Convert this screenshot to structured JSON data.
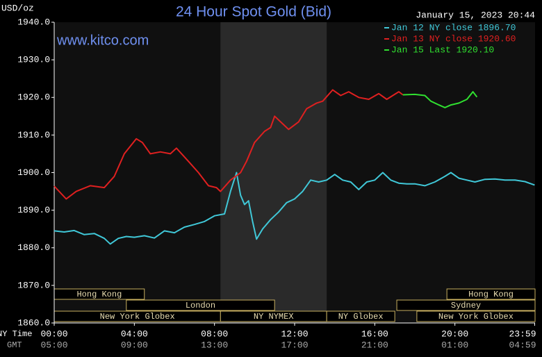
{
  "chart_data": {
    "type": "line",
    "title": "24 Hour Spot Gold (Bid)",
    "website": "www.kitco.com",
    "unit_label": "USD/oz",
    "timestamp": "January 15, 2023 20:44",
    "x_row_labels": [
      "NY Time",
      "GMT"
    ],
    "xlim": [
      0,
      24
    ],
    "xticks": [
      {
        "value": 0,
        "label": "00:00"
      },
      {
        "value": 4,
        "label": "04:00"
      },
      {
        "value": 8,
        "label": "08:00"
      },
      {
        "value": 12,
        "label": "12:00"
      },
      {
        "value": 16,
        "label": "16:00"
      },
      {
        "value": 20,
        "label": "20:00"
      },
      {
        "value": 23.983,
        "label": "23:59"
      }
    ],
    "gmt_labels": [
      "05:00",
      "09:00",
      "13:00",
      "17:00",
      "21:00",
      "01:00",
      "04:59"
    ],
    "ylim": [
      1860,
      1940
    ],
    "yticks": [
      {
        "value": 1860,
        "label": "1860.0"
      },
      {
        "value": 1870,
        "label": "1870.0"
      },
      {
        "value": 1880,
        "label": "1880.0"
      },
      {
        "value": 1890,
        "label": "1890.0"
      },
      {
        "value": 1900,
        "label": "1900.0"
      },
      {
        "value": 1910,
        "label": "1910.0"
      },
      {
        "value": 1920,
        "label": "1920.0"
      },
      {
        "value": 1930,
        "label": "1930.0"
      },
      {
        "value": 1940,
        "label": "1940.0"
      }
    ],
    "highlight_range": [
      8.3,
      13.6
    ],
    "sessions": [
      [
        {
          "label": "Hong Kong",
          "start": 0,
          "end": 4.5
        },
        {
          "label": "Hong Kong",
          "start": 19.6,
          "end": 24
        }
      ],
      [
        {
          "label": "London",
          "start": 3.6,
          "end": 11
        },
        {
          "label": "Sydney",
          "start": 17.1,
          "end": 24
        }
      ],
      [
        {
          "label": "New York Globex",
          "start": 0,
          "end": 8.3
        },
        {
          "label": "NY NYMEX",
          "start": 8.3,
          "end": 13.6
        },
        {
          "label": "NY Globex",
          "start": 13.6,
          "end": 17
        },
        {
          "label": "New York Globex",
          "start": 18.1,
          "end": 24
        }
      ]
    ],
    "series": [
      {
        "name": "Jan 12 NY close 1896.70",
        "color": "#40c8d8",
        "x": [
          0,
          0.5,
          1,
          1.5,
          2,
          2.5,
          2.8,
          3.2,
          3.6,
          4,
          4.5,
          5,
          5.5,
          6,
          6.5,
          7,
          7.5,
          8,
          8.5,
          8.8,
          9.1,
          9.3,
          9.5,
          9.7,
          9.9,
          10.1,
          10.4,
          10.8,
          11.2,
          11.6,
          12,
          12.4,
          12.8,
          13.2,
          13.6,
          14,
          14.4,
          14.8,
          15.2,
          15.6,
          16,
          16.4,
          16.8,
          17.2,
          17.6,
          18,
          18.5,
          19,
          19.5,
          19.8,
          20.2,
          20.6,
          21,
          21.5,
          22,
          22.5,
          23,
          23.5,
          23.98
        ],
        "values": [
          1884.5,
          1884.2,
          1884.6,
          1883.5,
          1883.8,
          1882.5,
          1881,
          1882.5,
          1883,
          1882.8,
          1883.2,
          1882.6,
          1884.5,
          1884,
          1885.5,
          1886.2,
          1887,
          1888.5,
          1889,
          1895,
          1900,
          1894,
          1891.5,
          1892.5,
          1887,
          1882.3,
          1885,
          1887.5,
          1889.5,
          1892,
          1893,
          1895,
          1898,
          1897.5,
          1898,
          1899.5,
          1898,
          1897.5,
          1895.5,
          1897.5,
          1898,
          1900,
          1898,
          1897.2,
          1897,
          1897,
          1896.5,
          1897.5,
          1899,
          1900,
          1898.5,
          1898,
          1897.5,
          1898.2,
          1898.3,
          1898,
          1898,
          1897.6,
          1896.7
        ]
      },
      {
        "name": "Jan 13 NY close 1920.60",
        "color": "#e02020",
        "x": [
          0,
          0.6,
          1.1,
          1.8,
          2.5,
          3,
          3.5,
          4.1,
          4.4,
          4.8,
          5.3,
          5.8,
          6.1,
          6.7,
          7.2,
          7.7,
          8.1,
          8.3,
          8.8,
          9.3,
          9.6,
          10,
          10.5,
          10.8,
          11,
          11.4,
          11.7,
          12.2,
          12.6,
          13.1,
          13.4,
          13.9,
          14.3,
          14.7,
          15.2,
          15.7,
          16.2,
          16.6,
          16.9,
          17.2,
          17.4
        ],
        "values": [
          1896.4,
          1893,
          1895,
          1896.5,
          1896,
          1899,
          1905,
          1909,
          1908,
          1905,
          1905.5,
          1905,
          1906.5,
          1903,
          1900,
          1896.5,
          1896,
          1895,
          1898,
          1900,
          1903,
          1908,
          1911,
          1912,
          1915,
          1913,
          1911.5,
          1913.5,
          1917,
          1918.5,
          1919,
          1922,
          1920.5,
          1921.5,
          1920,
          1919.5,
          1921,
          1919.5,
          1920.5,
          1921.5,
          1920.7
        ]
      },
      {
        "name": "Jan 15 Last 1920.10",
        "color": "#30e030",
        "x": [
          17.4,
          18,
          18.5,
          18.8,
          19.2,
          19.5,
          19.8,
          20.2,
          20.6,
          20.9,
          21.1
        ],
        "values": [
          1920.7,
          1920.8,
          1920.5,
          1919,
          1918,
          1917.3,
          1918,
          1918.5,
          1919.5,
          1921.5,
          1920.1
        ]
      }
    ]
  }
}
